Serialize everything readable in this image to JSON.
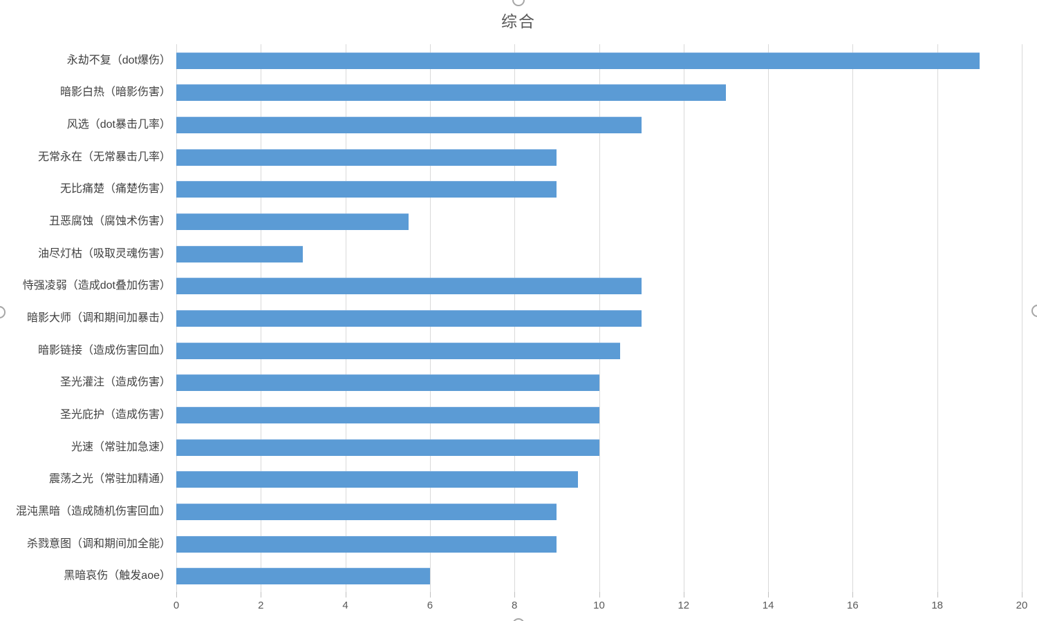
{
  "window": {
    "background": "#ffffff"
  },
  "chart_data": {
    "type": "bar",
    "orientation": "horizontal",
    "title": "综合",
    "categories": [
      "永劫不复（dot爆伤）",
      "暗影白热（暗影伤害）",
      "风选（dot暴击几率）",
      "无常永在（无常暴击几率）",
      "无比痛楚（痛楚伤害）",
      "丑恶腐蚀（腐蚀术伤害）",
      "油尽灯枯（吸取灵魂伤害）",
      "恃强凌弱（造成dot叠加伤害）",
      "暗影大师（调和期间加暴击）",
      "暗影链接（造成伤害回血）",
      "圣光灌注（造成伤害）",
      "圣光庇护（造成伤害）",
      "光速（常驻加急速）",
      "震荡之光（常驻加精通）",
      "混沌黑暗（造成随机伤害回血）",
      "杀戮意图（调和期间加全能）",
      "黑暗哀伤（触发aoe）"
    ],
    "values": [
      19,
      13,
      11,
      9,
      9,
      5.5,
      3,
      11,
      11,
      10.5,
      10,
      10,
      10,
      9.5,
      9,
      9,
      6
    ],
    "xlabel": "",
    "ylabel": "",
    "xlim": [
      0,
      20
    ],
    "xticks": [
      0,
      2,
      4,
      6,
      8,
      10,
      12,
      14,
      16,
      18,
      20
    ],
    "grid": "vertical-major",
    "legend": "none",
    "colors": {
      "bar": "#5b9bd5",
      "gridline": "#d9d9d9",
      "tick": "#bfbfbf",
      "title_text": "#595959",
      "category_text": "#404040",
      "tick_text": "#595959"
    }
  },
  "selection": {
    "handle_positions": [
      "top-center",
      "left-middle",
      "right-middle",
      "bottom-center"
    ],
    "handle_border_color": "#a6a6a6",
    "handle_fill_color": "#ffffff"
  }
}
